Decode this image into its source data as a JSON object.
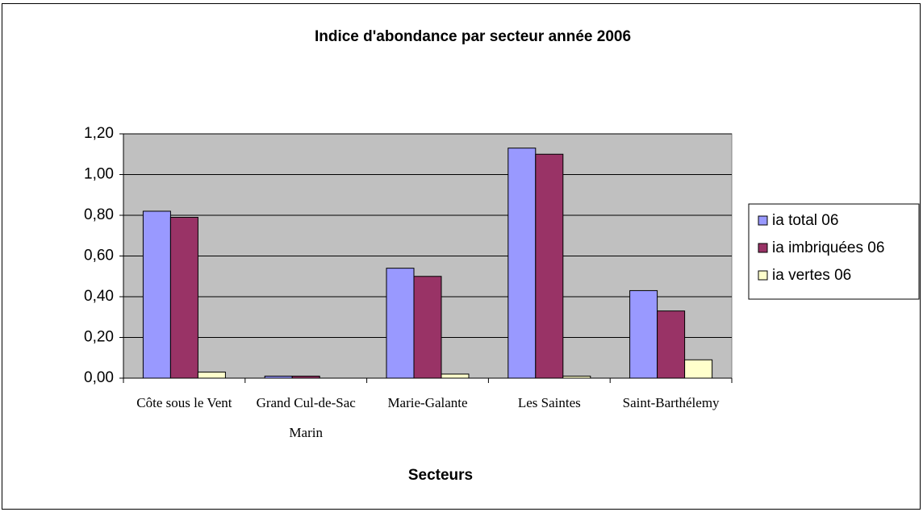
{
  "chart_data": {
    "type": "bar",
    "title": "Indice d'abondance par secteur année 2006",
    "x_label": "Secteurs",
    "categories": [
      "Côte sous le Vent",
      "Grand Cul-de-Sac Marin",
      "Marie-Galante",
      "Les Saintes",
      "Saint-Barthélemy"
    ],
    "series": [
      {
        "name": "ia total 06",
        "color": "#9999FF",
        "values": [
          0.82,
          0.01,
          0.54,
          1.13,
          0.43
        ]
      },
      {
        "name": "ia imbriquées 06",
        "color": "#993366",
        "values": [
          0.79,
          0.01,
          0.5,
          1.1,
          0.33
        ]
      },
      {
        "name": "ia vertes 06",
        "color": "#FFFFCC",
        "values": [
          0.03,
          0,
          0.02,
          0.01,
          0.09
        ]
      }
    ],
    "ylim": [
      0,
      1.2
    ],
    "yticks": [
      {
        "value": 0,
        "label": "0,00"
      },
      {
        "value": 0.2,
        "label": "0,20"
      },
      {
        "value": 0.4,
        "label": "0,40"
      },
      {
        "value": 0.6,
        "label": "0,60"
      },
      {
        "value": 0.8,
        "label": "0,80"
      },
      {
        "value": 1.0,
        "label": "1,00"
      },
      {
        "value": 1.2,
        "label": "1,20"
      }
    ],
    "grid": true,
    "legend": "right",
    "plot_background": "#C0C0C0"
  }
}
